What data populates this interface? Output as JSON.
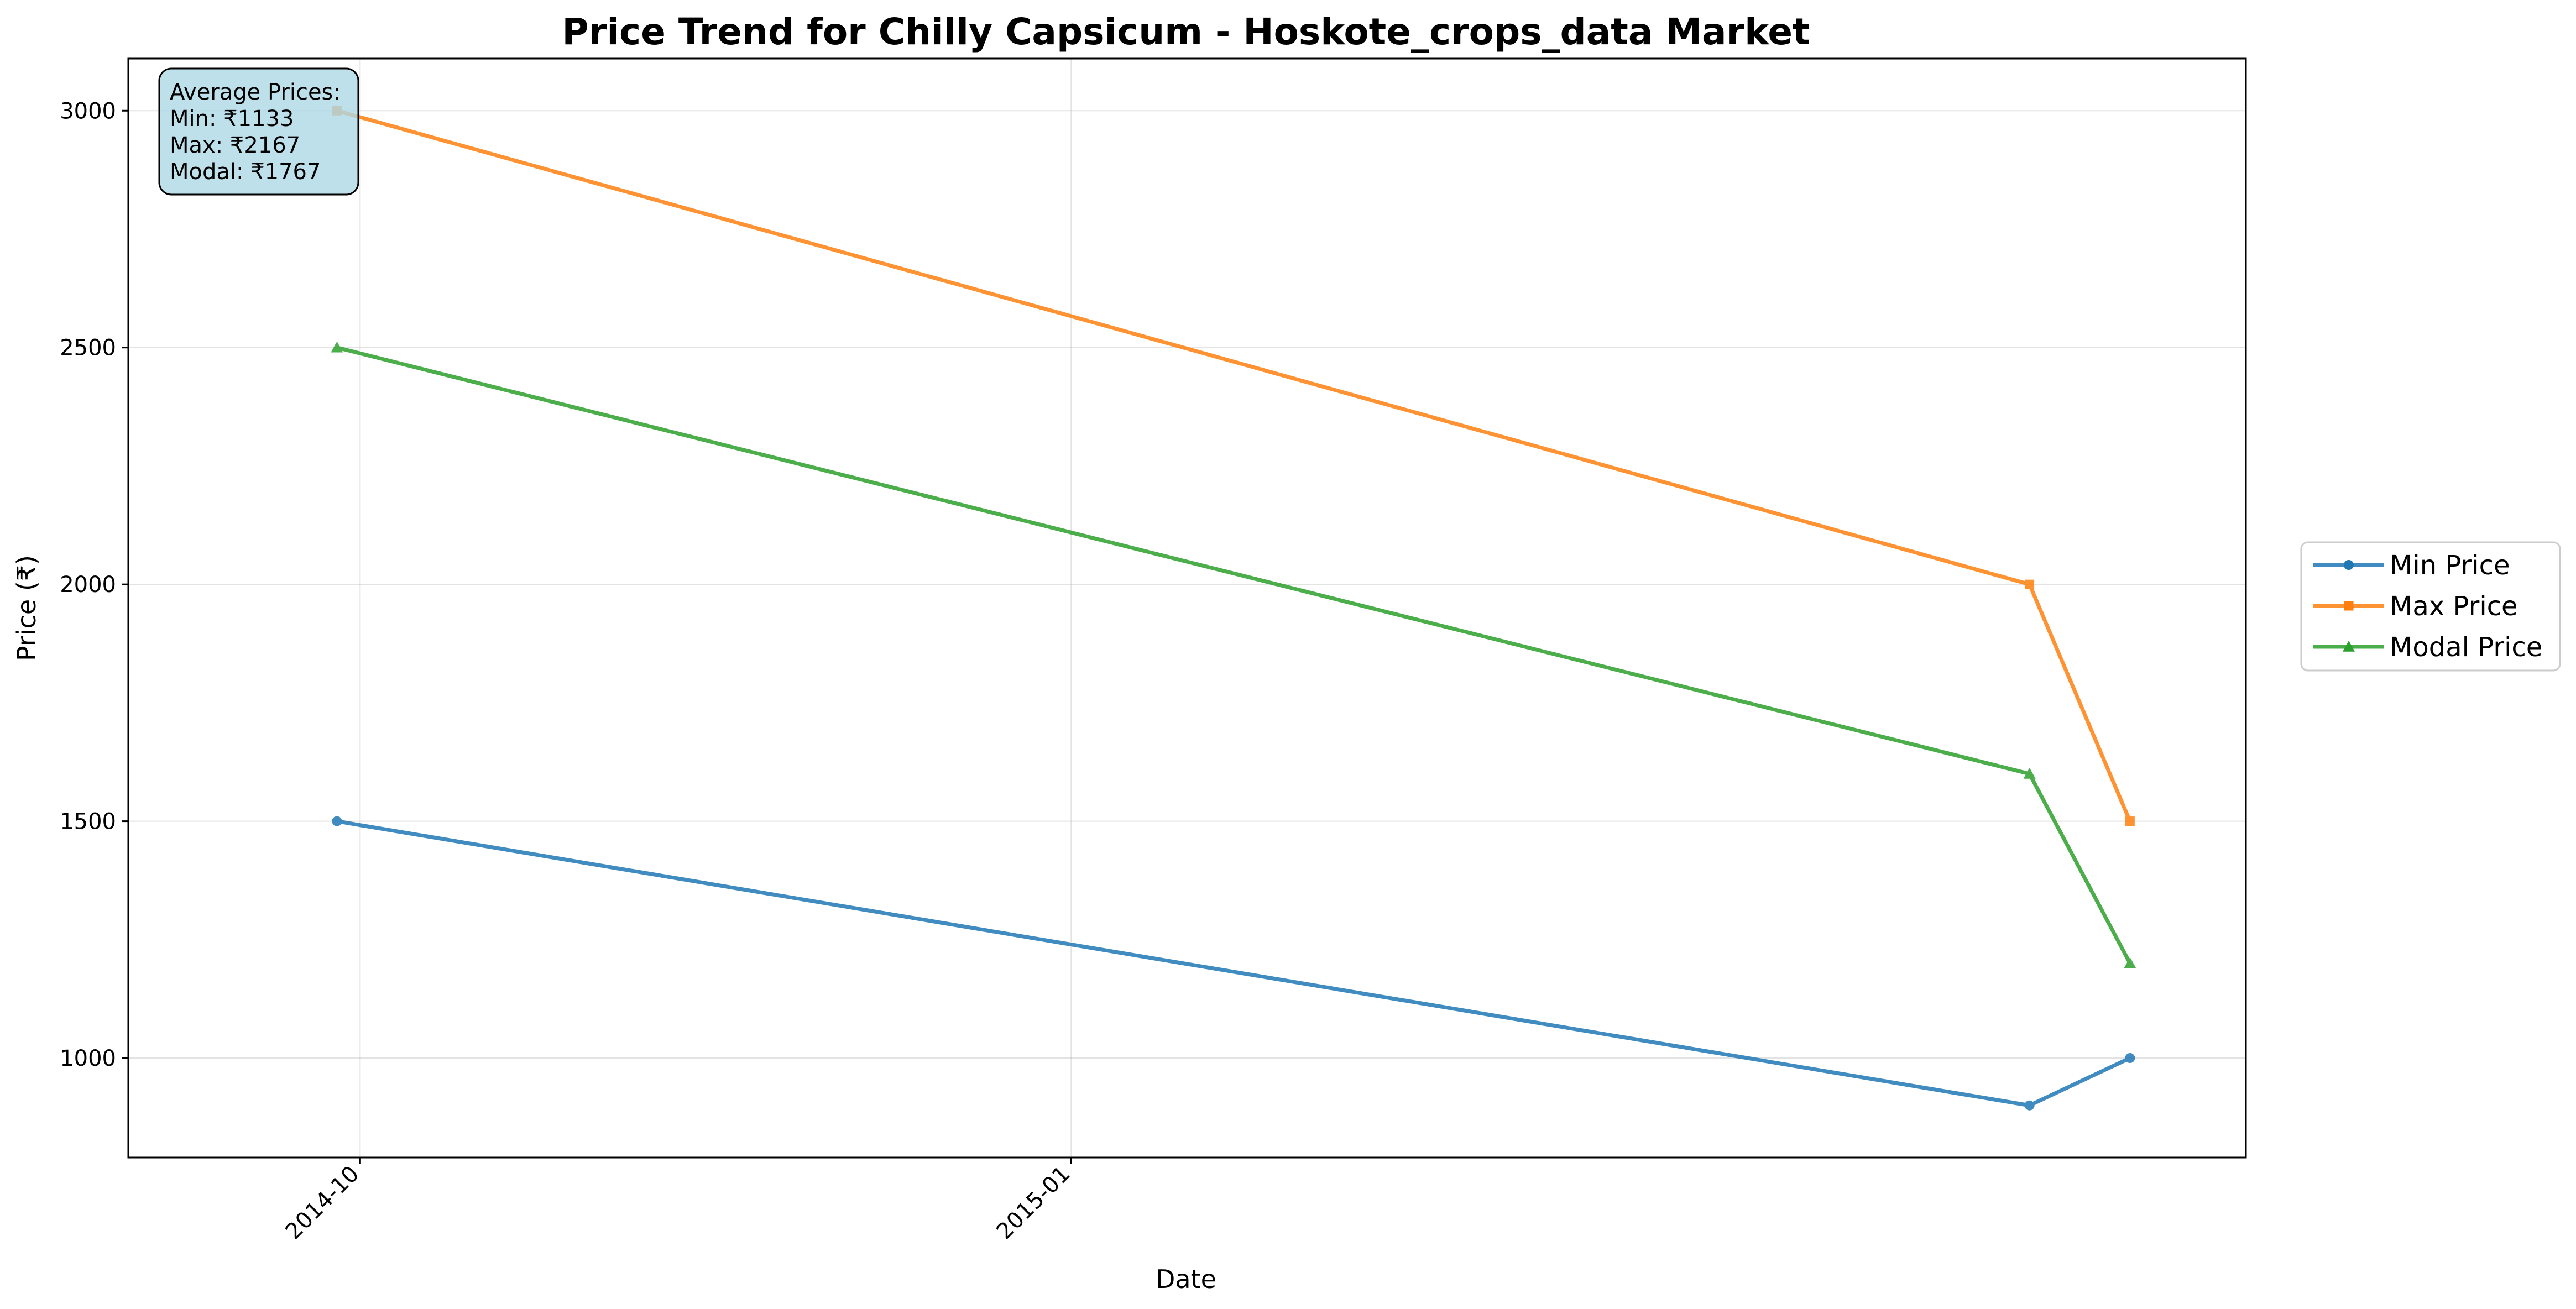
{
  "chart_data": {
    "type": "line",
    "title": "Price Trend for Chilly Capsicum - Hoskote_crops_data Market",
    "xlabel": "Date",
    "ylabel": "Price (₹)",
    "x": [
      "2014-09-28",
      "2015-05-05",
      "2015-05-18"
    ],
    "xlim": [
      "2014-09-01",
      "2015-06-02"
    ],
    "xticks": [
      {
        "label": "2014-10",
        "date": "2014-10-01"
      },
      {
        "label": "2015-01",
        "date": "2015-01-01"
      }
    ],
    "ylim": [
      790,
      3110
    ],
    "yticks": [
      1000,
      1500,
      2000,
      2500,
      3000
    ],
    "grid": true,
    "legend_position": "outside-right",
    "series": [
      {
        "name": "Min Price",
        "values": [
          1500,
          900,
          1000
        ],
        "color": "#1f77b4",
        "marker": "circle"
      },
      {
        "name": "Max Price",
        "values": [
          3000,
          2000,
          1500
        ],
        "color": "#ff7f0e",
        "marker": "square"
      },
      {
        "name": "Modal Price",
        "values": [
          2500,
          1600,
          1200
        ],
        "color": "#2ca02c",
        "marker": "triangle"
      }
    ],
    "annotation": {
      "lines": [
        "Average Prices:",
        "Min: ₹1133",
        "Max: ₹2167",
        "Modal: ₹1767"
      ],
      "position": "top-left",
      "background": "#add8e6"
    }
  }
}
